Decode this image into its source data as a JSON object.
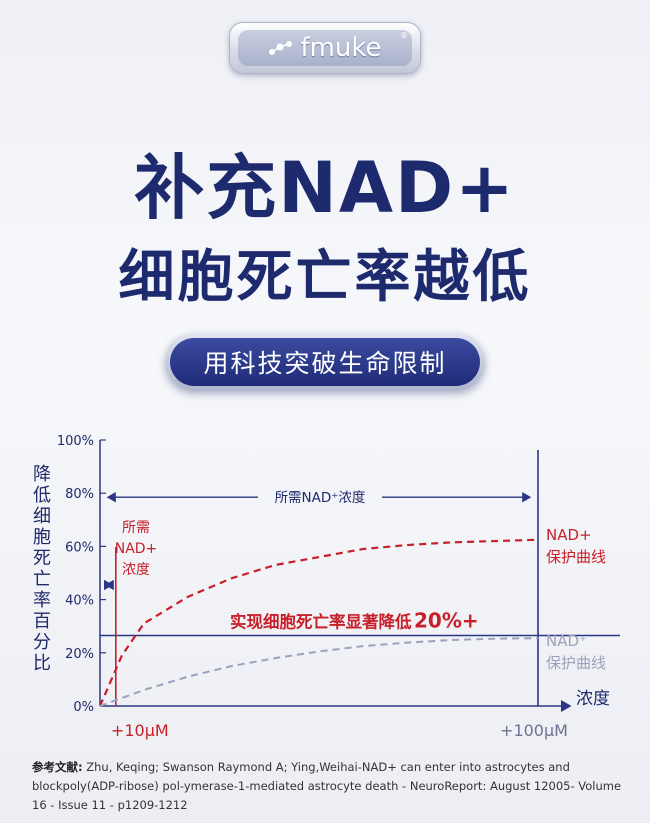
{
  "brand": {
    "name": "fmuke",
    "reg": "®"
  },
  "headline": {
    "line1": "补充NAD+",
    "line2": "细胞死亡率越低"
  },
  "tagline": "用科技突破生命限制",
  "chart_data": {
    "type": "line",
    "ylabel": "降低细胞死亡率百分比",
    "xlabel": "浓度",
    "yticks": [
      "0%",
      "20%",
      "40%",
      "60%",
      "80%",
      "100%"
    ],
    "ylim": [
      0,
      100
    ],
    "xlim": [
      0,
      100
    ],
    "xticks": [
      {
        "x": 10,
        "label": "+10μM"
      },
      {
        "x": 100,
        "label": "+100μM"
      }
    ],
    "series": [
      {
        "name": "NAD+保护曲线",
        "label_line1": "NAD+",
        "label_line2": "保护曲线",
        "color": "#c8202a",
        "style": "dashed",
        "x": [
          0,
          5,
          10,
          20,
          30,
          40,
          50,
          60,
          70,
          80,
          90,
          100
        ],
        "y": [
          0,
          19,
          31,
          41,
          48,
          53,
          56,
          59,
          60.5,
          61.5,
          62,
          62.5
        ]
      },
      {
        "name": "NAD保护曲线",
        "label_line1": "NAD⁺",
        "label_line2": "保护曲线",
        "color": "#9da1bc",
        "style": "dashed",
        "x": [
          0,
          10,
          20,
          30,
          40,
          50,
          60,
          70,
          80,
          90,
          100
        ],
        "y": [
          0,
          6,
          11,
          15,
          18,
          20.5,
          22.5,
          23.8,
          24.8,
          25.3,
          25.5
        ]
      }
    ],
    "reference_lines": {
      "horizontal_y": 26.5,
      "vertical_red_x": 10,
      "vertical_blue_x": 100
    },
    "annotations": {
      "range_wide": "所需NAD⁺浓度",
      "range_narrow_lines": [
        "所需",
        "NAD+",
        "浓度"
      ],
      "highlight_text": "实现细胞死亡率显著降低",
      "highlight_value": "20%+"
    },
    "colors": {
      "axis": "#2b3784",
      "red": "#c8202a",
      "gray": "#9da1bc",
      "text": "#1f2a6b"
    }
  },
  "references": {
    "label": "参考文献:",
    "text": " Zhu, Keqing; Swanson Raymond A; Ying,Weihai-NAD+ can enter into astrocytes and blockpoly(ADP-ribose) pol-ymerase-1-mediated astrocyte death - NeuroReport: August 12005- Volume 16 - Issue 11 - p1209-1212"
  }
}
